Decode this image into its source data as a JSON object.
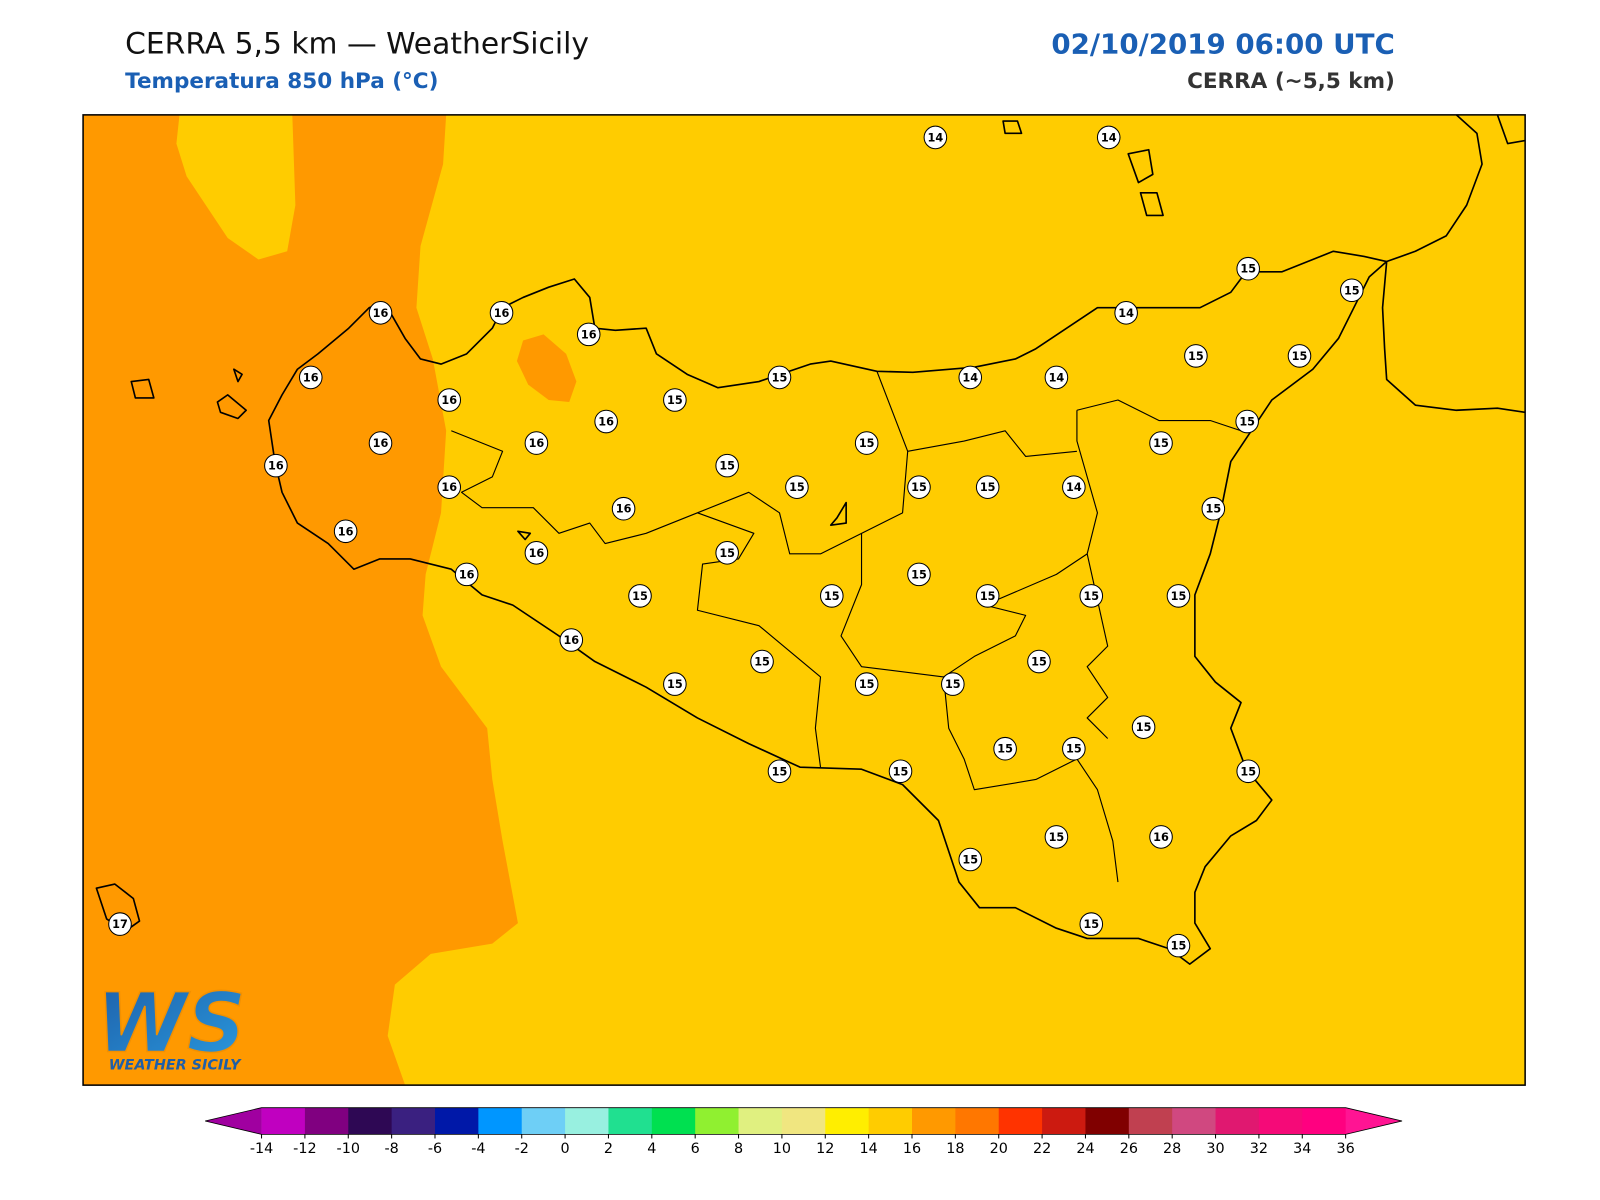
{
  "header": {
    "title": "CERRA 5,5 km — WeatherSicily",
    "subtitle": "Temperatura 850 hPa (°C)",
    "datetime": "02/10/2019 06:00 UTC",
    "model": "CERRA (~5,5 km)"
  },
  "stations": [
    14,
    14,
    15,
    15,
    16,
    16,
    16,
    14,
    16,
    15,
    14,
    14,
    15,
    15,
    16,
    15,
    16,
    15,
    16,
    16,
    15,
    15,
    16,
    15,
    16,
    15,
    15,
    15,
    14,
    16,
    15,
    16,
    16,
    15,
    16,
    15,
    15,
    15,
    15,
    15,
    15,
    16,
    15,
    15,
    15,
    15,
    15,
    15,
    15,
    15,
    15,
    15,
    15,
    15,
    16,
    15,
    15,
    15,
    17
  ],
  "colorbar": {
    "ticks": [
      -14,
      -12,
      -10,
      -8,
      -6,
      -4,
      -2,
      0,
      2,
      4,
      6,
      8,
      10,
      12,
      14,
      16,
      18,
      20,
      22,
      24,
      26,
      28,
      30,
      32,
      34,
      36
    ],
    "colors": [
      "#c000c0",
      "#800080",
      "#2e0854",
      "#3a2080",
      "#0018a8",
      "#0096ff",
      "#6ecff6",
      "#98f0e0",
      "#20e090",
      "#00e050",
      "#90f030",
      "#e0f080",
      "#f0e680",
      "#ffee00",
      "#ffcc00",
      "#ff9900",
      "#ff7700",
      "#ff3300",
      "#cc1a10",
      "#800000",
      "#c04050",
      "#d04880",
      "#e01870",
      "#f50a78",
      "#ff0080"
    ],
    "extend_colors": [
      "#a000a0",
      "#ff1493"
    ]
  },
  "logo": {
    "text": "WS",
    "caption": "WEATHER SICILY"
  }
}
